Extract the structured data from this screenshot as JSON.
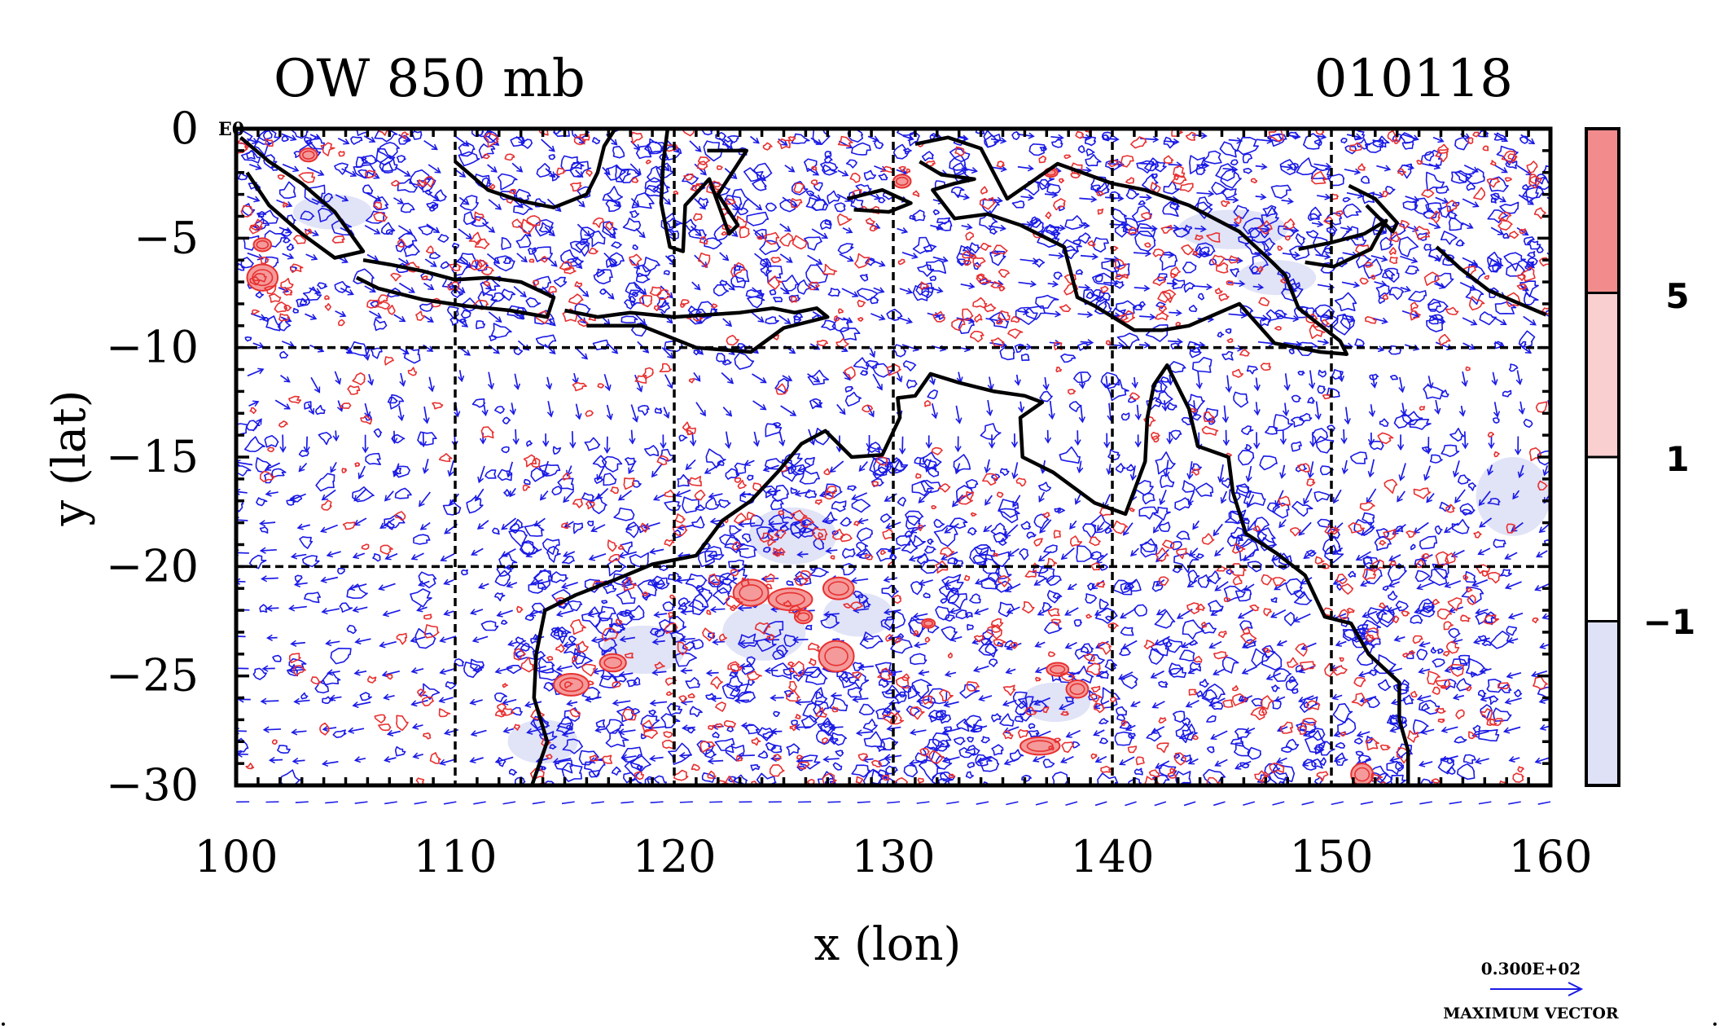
{
  "title_left": "OW 850 mb",
  "title_right": "010118",
  "corner_label": "E0",
  "x_axis": {
    "label": "x (lon)",
    "ticks": [
      100,
      110,
      120,
      130,
      140,
      150,
      160
    ],
    "range": [
      100,
      160
    ]
  },
  "y_axis": {
    "label": "y (lat)",
    "ticks": [
      0,
      -5,
      -10,
      -15,
      -20,
      -25,
      -30
    ],
    "tick_labels": [
      "0",
      "−5",
      "−10",
      "−15",
      "−20",
      "−25",
      "−30"
    ],
    "range": [
      -30,
      0
    ]
  },
  "grid": {
    "dashed_lon": [
      110,
      120,
      130,
      140,
      150
    ],
    "dashed_lat": [
      -10,
      -20
    ]
  },
  "colorbar": {
    "labels": [
      "5",
      "1",
      "−1"
    ],
    "bands": [
      {
        "color": "#f28c8c"
      },
      {
        "color": "#f9cfcf"
      },
      {
        "color": "#ffffff"
      },
      {
        "color": "#dfe2f7"
      }
    ]
  },
  "vector_key": {
    "value": "0.300E+02",
    "caption": "MAXIMUM VECTOR"
  },
  "colors": {
    "positive_contour": "#e83030",
    "negative_contour": "#1a1ae6",
    "vector": "#1a1ae6",
    "coast": "#000000",
    "positive_fill": "#f49a9a",
    "negative_fill": "#dfe2f7"
  },
  "coastlines": [
    {
      "name": "sumatra",
      "points": [
        [
          100.2,
          -0.4
        ],
        [
          101.5,
          -1.5
        ],
        [
          103,
          -2.5
        ],
        [
          104.5,
          -3.8
        ],
        [
          105.8,
          -5.6
        ],
        [
          104.5,
          -5.9
        ],
        [
          103,
          -4.8
        ],
        [
          101.5,
          -3.5
        ],
        [
          100.5,
          -2
        ]
      ]
    },
    {
      "name": "java",
      "points": [
        [
          105.8,
          -6
        ],
        [
          107,
          -6.2
        ],
        [
          108.5,
          -6.5
        ],
        [
          110,
          -6.9
        ],
        [
          111.5,
          -6.8
        ],
        [
          113,
          -7
        ],
        [
          114.5,
          -7.7
        ],
        [
          114.2,
          -8.6
        ],
        [
          112.5,
          -8.3
        ],
        [
          110.5,
          -8.1
        ],
        [
          108.5,
          -7.8
        ],
        [
          106.5,
          -7.3
        ],
        [
          105.5,
          -6.8
        ]
      ]
    },
    {
      "name": "lesser-sunda",
      "points": [
        [
          115,
          -8.3
        ],
        [
          116.5,
          -8.6
        ],
        [
          118,
          -8.4
        ],
        [
          120,
          -8.6
        ],
        [
          121.5,
          -8.5
        ],
        [
          123,
          -8.4
        ],
        [
          124.5,
          -8.2
        ],
        [
          125.5,
          -8.4
        ],
        [
          126.5,
          -8.2
        ],
        [
          127,
          -8.6
        ],
        [
          125,
          -9.1
        ],
        [
          123.5,
          -10.2
        ],
        [
          121,
          -10
        ],
        [
          118.5,
          -9
        ],
        [
          116,
          -9
        ]
      ]
    },
    {
      "name": "borneo",
      "points": [
        [
          110,
          -1.5
        ],
        [
          111.5,
          -2.8
        ],
        [
          113,
          -3.3
        ],
        [
          114.5,
          -3.6
        ],
        [
          116,
          -3
        ],
        [
          116.5,
          -2
        ],
        [
          116.8,
          -0.8
        ],
        [
          117.3,
          0
        ]
      ]
    },
    {
      "name": "sulawesi",
      "points": [
        [
          119.7,
          0
        ],
        [
          119.5,
          -1.5
        ],
        [
          119.4,
          -3.4
        ],
        [
          119.8,
          -5.4
        ],
        [
          120.4,
          -5.6
        ],
        [
          120.5,
          -3.5
        ],
        [
          121.6,
          -2.3
        ],
        [
          122.5,
          -4.8
        ],
        [
          122.9,
          -4.4
        ],
        [
          122,
          -3
        ],
        [
          123.3,
          -1
        ],
        [
          121.5,
          -1
        ]
      ]
    },
    {
      "name": "seram",
      "points": [
        [
          127.9,
          -3.2
        ],
        [
          129.5,
          -2.8
        ],
        [
          130.8,
          -3.4
        ],
        [
          129.8,
          -3.8
        ],
        [
          128.2,
          -3.7
        ]
      ]
    },
    {
      "name": "new-guinea",
      "points": [
        [
          131,
          -0.7
        ],
        [
          132.5,
          -0.4
        ],
        [
          134,
          -0.9
        ],
        [
          135.2,
          -3.2
        ],
        [
          137.5,
          -1.6
        ],
        [
          140,
          -2.5
        ],
        [
          141.5,
          -2.8
        ],
        [
          143.5,
          -3.5
        ],
        [
          145.8,
          -4.7
        ],
        [
          147.3,
          -6.1
        ],
        [
          147.9,
          -6.7
        ],
        [
          148.5,
          -8.2
        ],
        [
          150.4,
          -9.7
        ],
        [
          150.7,
          -10.3
        ],
        [
          149.5,
          -10.2
        ],
        [
          147.4,
          -9.8
        ],
        [
          145.8,
          -8
        ],
        [
          143.5,
          -9
        ],
        [
          142.3,
          -9.2
        ],
        [
          141,
          -9.2
        ],
        [
          139.2,
          -8.1
        ],
        [
          138.4,
          -7.7
        ],
        [
          137.8,
          -5.4
        ],
        [
          135.8,
          -4.4
        ],
        [
          134.3,
          -3.9
        ],
        [
          132.8,
          -4.1
        ],
        [
          131.8,
          -2.8
        ],
        [
          132.8,
          -2.5
        ],
        [
          133.7,
          -2.3
        ],
        [
          132.2,
          -2.1
        ],
        [
          131.2,
          -1.5
        ]
      ]
    },
    {
      "name": "new-britain",
      "points": [
        [
          148.5,
          -5.5
        ],
        [
          150,
          -5.2
        ],
        [
          151.5,
          -4.8
        ],
        [
          152.5,
          -4.2
        ],
        [
          151.8,
          -5.5
        ],
        [
          150.1,
          -6.3
        ],
        [
          148.8,
          -6.1
        ]
      ]
    },
    {
      "name": "new-ireland",
      "points": [
        [
          150.8,
          -2.6
        ],
        [
          152,
          -3.2
        ],
        [
          153,
          -4.3
        ],
        [
          152.8,
          -4.7
        ],
        [
          151.6,
          -3.5
        ]
      ]
    },
    {
      "name": "solomons",
      "points": [
        [
          154.8,
          -5.4
        ],
        [
          155.9,
          -6.4
        ],
        [
          157.2,
          -7.4
        ],
        [
          159.8,
          -8.5
        ]
      ]
    },
    {
      "name": "australia",
      "points": [
        [
          113.5,
          -30
        ],
        [
          114.2,
          -28
        ],
        [
          113.6,
          -26
        ],
        [
          113.7,
          -24
        ],
        [
          114.1,
          -22
        ],
        [
          115.5,
          -21.3
        ],
        [
          117.3,
          -20.6
        ],
        [
          119,
          -19.9
        ],
        [
          121,
          -19.5
        ],
        [
          122.2,
          -17.9
        ],
        [
          123.5,
          -17
        ],
        [
          124.8,
          -15.6
        ],
        [
          125.8,
          -14.4
        ],
        [
          126.9,
          -13.8
        ],
        [
          128.1,
          -15
        ],
        [
          129.5,
          -14.9
        ],
        [
          130.3,
          -13.2
        ],
        [
          130.2,
          -12.3
        ],
        [
          131,
          -12.2
        ],
        [
          131.7,
          -11.2
        ],
        [
          133,
          -11.6
        ],
        [
          134.6,
          -12
        ],
        [
          136,
          -12.2
        ],
        [
          136.8,
          -12.5
        ],
        [
          135.8,
          -13.2
        ],
        [
          135.9,
          -15
        ],
        [
          137.3,
          -15.7
        ],
        [
          139.2,
          -17.1
        ],
        [
          140.6,
          -17.6
        ],
        [
          141.5,
          -15.2
        ],
        [
          141.6,
          -13.2
        ],
        [
          141.9,
          -11.7
        ],
        [
          142.5,
          -10.8
        ],
        [
          143.5,
          -12.8
        ],
        [
          143.9,
          -14.5
        ],
        [
          145.3,
          -15
        ],
        [
          145.5,
          -16.6
        ],
        [
          146.1,
          -18.5
        ],
        [
          147.5,
          -19.4
        ],
        [
          148.8,
          -20.4
        ],
        [
          149.7,
          -22.3
        ],
        [
          150.9,
          -22.6
        ],
        [
          151.7,
          -24
        ],
        [
          153.1,
          -25.3
        ],
        [
          153.1,
          -27
        ],
        [
          153.5,
          -28.4
        ],
        [
          153.5,
          -30
        ]
      ]
    }
  ],
  "positive_regions": [
    {
      "lon": 101.2,
      "lat": -6.8,
      "rx": 0.7,
      "ry": 0.6
    },
    {
      "lon": 101.2,
      "lat": -5.3,
      "rx": 0.4,
      "ry": 0.3
    },
    {
      "lon": 103.3,
      "lat": -1.2,
      "rx": 0.4,
      "ry": 0.3
    },
    {
      "lon": 115.3,
      "lat": -25.4,
      "rx": 0.8,
      "ry": 0.5
    },
    {
      "lon": 117.2,
      "lat": -24.4,
      "rx": 0.6,
      "ry": 0.4
    },
    {
      "lon": 123.5,
      "lat": -21.2,
      "rx": 0.8,
      "ry": 0.6
    },
    {
      "lon": 125.3,
      "lat": -21.5,
      "rx": 1.0,
      "ry": 0.5
    },
    {
      "lon": 127.5,
      "lat": -21.0,
      "rx": 0.7,
      "ry": 0.5
    },
    {
      "lon": 127.4,
      "lat": -24.1,
      "rx": 0.8,
      "ry": 0.7
    },
    {
      "lon": 125.9,
      "lat": -22.3,
      "rx": 0.4,
      "ry": 0.3
    },
    {
      "lon": 131.6,
      "lat": -22.6,
      "rx": 0.3,
      "ry": 0.2
    },
    {
      "lon": 137.5,
      "lat": -24.7,
      "rx": 0.5,
      "ry": 0.3
    },
    {
      "lon": 138.4,
      "lat": -25.6,
      "rx": 0.5,
      "ry": 0.4
    },
    {
      "lon": 136.7,
      "lat": -28.2,
      "rx": 0.9,
      "ry": 0.4
    },
    {
      "lon": 151.4,
      "lat": -29.5,
      "rx": 0.5,
      "ry": 0.5
    },
    {
      "lon": 130.4,
      "lat": -2.4,
      "rx": 0.4,
      "ry": 0.3
    },
    {
      "lon": 137.2,
      "lat": -2.0,
      "rx": 0.3,
      "ry": 0.2
    }
  ],
  "negative_regions": [
    {
      "lon": 114,
      "lat": -28.0,
      "rx": 1.6,
      "ry": 1.0
    },
    {
      "lon": 125.4,
      "lat": -18.6,
      "rx": 2.0,
      "ry": 1.3
    },
    {
      "lon": 124.1,
      "lat": -23.0,
      "rx": 1.9,
      "ry": 1.3
    },
    {
      "lon": 118.6,
      "lat": -23.8,
      "rx": 1.9,
      "ry": 1.1
    },
    {
      "lon": 128.4,
      "lat": -22.2,
      "rx": 1.6,
      "ry": 1.0
    },
    {
      "lon": 137.4,
      "lat": -26.2,
      "rx": 1.6,
      "ry": 0.9
    },
    {
      "lon": 145.5,
      "lat": -4.6,
      "rx": 2.5,
      "ry": 0.9
    },
    {
      "lon": 147.5,
      "lat": -6.8,
      "rx": 1.8,
      "ry": 0.8
    },
    {
      "lon": 158.3,
      "lat": -16.8,
      "rx": 1.7,
      "ry": 1.8
    },
    {
      "lon": 104.4,
      "lat": -3.8,
      "rx": 1.8,
      "ry": 0.8
    }
  ]
}
